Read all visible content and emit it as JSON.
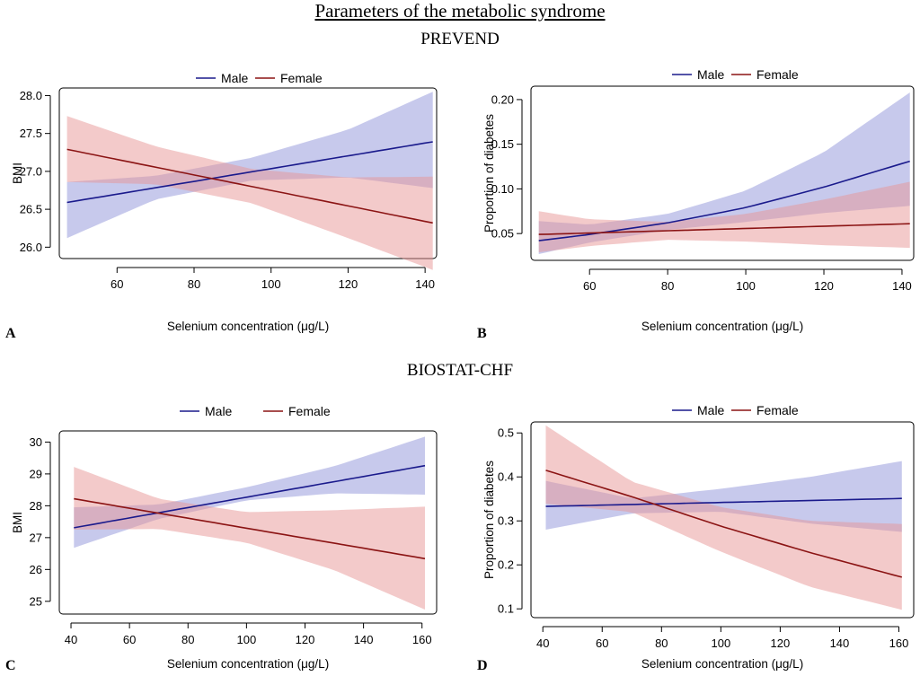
{
  "figure": {
    "title": "Parameters of the metabolic syndrome",
    "section_1": "PREVEND",
    "section_2": "BIOSTAT-CHF"
  },
  "colors": {
    "male_line": "#1a1a8c",
    "male_band": "#8f93d9",
    "female_line": "#8b1414",
    "female_band": "#e79596"
  },
  "chart_data": [
    {
      "panel": "A",
      "type": "line",
      "xlabel": "Selenium concentration (μg/L)",
      "ylabel": "BMI",
      "xlim": [
        45,
        143
      ],
      "ylim": [
        25.85,
        28.1
      ],
      "xticks": [
        60,
        80,
        100,
        120,
        140
      ],
      "yticks": [
        26.0,
        26.5,
        27.0,
        27.5,
        28.0
      ],
      "ytick_labels": [
        "26.0",
        "26.5",
        "27.0",
        "27.5",
        "28.0"
      ],
      "legend": "top",
      "series": [
        {
          "name": "Male",
          "x": [
            47,
            142
          ],
          "y": [
            26.59,
            27.39
          ],
          "band_x": [
            47,
            70,
            95,
            120,
            142
          ],
          "band_lower": [
            26.12,
            26.63,
            26.88,
            26.92,
            26.78
          ],
          "band_upper": [
            26.86,
            26.94,
            27.18,
            27.55,
            28.05
          ]
        },
        {
          "name": "Female",
          "x": [
            47,
            142
          ],
          "y": [
            27.29,
            26.32
          ],
          "band_x": [
            47,
            70,
            95,
            120,
            142
          ],
          "band_lower": [
            26.86,
            26.83,
            26.58,
            26.12,
            25.7
          ],
          "band_upper": [
            27.73,
            27.33,
            27.03,
            26.92,
            26.93
          ]
        }
      ]
    },
    {
      "panel": "B",
      "type": "line",
      "xlabel": "Selenium concentration (μg/L)",
      "ylabel": "Proportion of diabetes",
      "xlim": [
        45,
        143
      ],
      "ylim": [
        0.02,
        0.215
      ],
      "xticks": [
        60,
        80,
        100,
        120,
        140
      ],
      "yticks": [
        0.05,
        0.1,
        0.15,
        0.2
      ],
      "ytick_labels": [
        "0.05",
        "0.10",
        "0.15",
        "0.20"
      ],
      "legend": "top",
      "series": [
        {
          "name": "Male",
          "x": [
            47,
            60,
            80,
            100,
            120,
            142
          ],
          "y": [
            0.042,
            0.049,
            0.062,
            0.079,
            0.102,
            0.131
          ],
          "band_x": [
            47,
            60,
            80,
            100,
            120,
            142
          ],
          "band_lower": [
            0.027,
            0.04,
            0.054,
            0.063,
            0.073,
            0.081
          ],
          "band_upper": [
            0.064,
            0.06,
            0.072,
            0.098,
            0.141,
            0.208
          ]
        },
        {
          "name": "Female",
          "x": [
            47,
            142
          ],
          "y": [
            0.049,
            0.061
          ],
          "band_x": [
            47,
            60,
            80,
            100,
            120,
            142
          ],
          "band_lower": [
            0.029,
            0.036,
            0.043,
            0.041,
            0.037,
            0.034
          ],
          "band_upper": [
            0.075,
            0.066,
            0.063,
            0.072,
            0.088,
            0.108
          ]
        }
      ]
    },
    {
      "panel": "C",
      "type": "line",
      "xlabel": "Selenium concentration (μg/L)",
      "ylabel": "BMI",
      "xlim": [
        36,
        165
      ],
      "ylim": [
        24.6,
        30.35
      ],
      "xticks": [
        40,
        60,
        80,
        100,
        120,
        140,
        160
      ],
      "yticks": [
        25,
        26,
        27,
        28,
        29,
        30
      ],
      "ytick_labels": [
        "25",
        "26",
        "27",
        "28",
        "29",
        "30"
      ],
      "legend": "top",
      "series": [
        {
          "name": "Male",
          "x": [
            41,
            161
          ],
          "y": [
            27.31,
            29.26
          ],
          "band_x": [
            41,
            70,
            100,
            130,
            161
          ],
          "band_lower": [
            26.68,
            27.59,
            28.17,
            28.39,
            28.35
          ],
          "band_upper": [
            27.95,
            28.04,
            28.58,
            29.24,
            30.17
          ]
        },
        {
          "name": "Female",
          "x": [
            41,
            161
          ],
          "y": [
            28.22,
            26.34
          ],
          "band_x": [
            41,
            70,
            100,
            130,
            161
          ],
          "band_lower": [
            27.25,
            27.27,
            26.84,
            25.98,
            24.74
          ],
          "band_upper": [
            29.22,
            28.22,
            27.8,
            27.86,
            27.97
          ]
        }
      ]
    },
    {
      "panel": "D",
      "type": "line",
      "xlabel": "Selenium concentration (μg/L)",
      "ylabel": "Proportion of diabetes",
      "xlim": [
        36,
        165
      ],
      "ylim": [
        0.08,
        0.525
      ],
      "xticks": [
        40,
        60,
        80,
        100,
        120,
        140,
        160
      ],
      "yticks": [
        0.1,
        0.2,
        0.3,
        0.4,
        0.5
      ],
      "ytick_labels": [
        "0.1",
        "0.2",
        "0.3",
        "0.4",
        "0.5"
      ],
      "legend": "top",
      "series": [
        {
          "name": "Male",
          "x": [
            41,
            161
          ],
          "y": [
            0.333,
            0.351
          ],
          "band_x": [
            41,
            70,
            100,
            130,
            161
          ],
          "band_lower": [
            0.28,
            0.317,
            0.321,
            0.294,
            0.275
          ],
          "band_upper": [
            0.391,
            0.351,
            0.373,
            0.4,
            0.436
          ]
        },
        {
          "name": "Female",
          "x": [
            41,
            70,
            100,
            130,
            161
          ],
          "y": [
            0.415,
            0.355,
            0.288,
            0.228,
            0.172
          ],
          "band_x": [
            41,
            70,
            100,
            130,
            161
          ],
          "band_lower": [
            0.339,
            0.32,
            0.23,
            0.15,
            0.098
          ],
          "band_upper": [
            0.517,
            0.389,
            0.331,
            0.3,
            0.293
          ]
        }
      ]
    }
  ]
}
